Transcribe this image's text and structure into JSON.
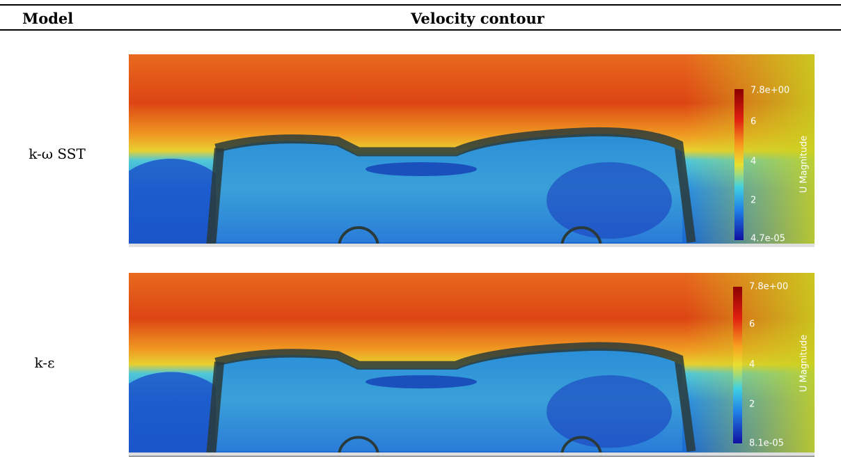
{
  "table": {
    "header": [
      "Model",
      "Velocity contour"
    ],
    "rows": [
      {
        "model": "k-ω SST",
        "colorbar": {
          "max": "7.8e+00",
          "ticks": [
            "6",
            "4",
            "2"
          ],
          "min": "4.7e-05",
          "title": "U Magnitude"
        }
      },
      {
        "model": "k-ε",
        "colorbar": {
          "max": "7.8e+00",
          "ticks": [
            "6",
            "4",
            "2"
          ],
          "min": "8.1e-05",
          "title": "U Magnitude"
        }
      }
    ]
  }
}
